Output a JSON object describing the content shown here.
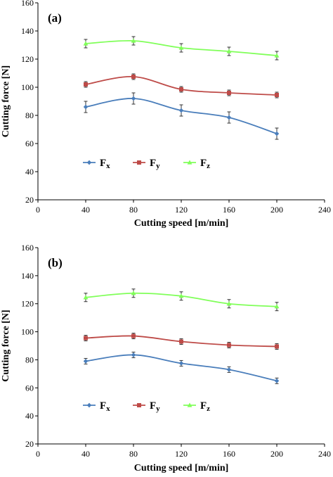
{
  "chart_data": [
    {
      "type": "line",
      "panel_label": "(a)",
      "xlabel": "Cutting speed [m/min]",
      "ylabel": "Cutting force [N]",
      "xlim": [
        0,
        240
      ],
      "ylim": [
        20,
        160
      ],
      "xticks": [
        0,
        40,
        80,
        120,
        160,
        200,
        240
      ],
      "yticks": [
        20,
        40,
        60,
        80,
        100,
        120,
        140,
        160
      ],
      "grid": false,
      "legend_position": "lower-left",
      "x": [
        40,
        80,
        120,
        160,
        200
      ],
      "series": [
        {
          "name": "F",
          "subscript": "x",
          "color": "#4a7ebb",
          "marker": "diamond",
          "values": [
            86,
            92,
            83.5,
            78.5,
            67
          ],
          "errors": [
            4,
            4,
            4,
            4,
            4
          ]
        },
        {
          "name": "F",
          "subscript": "y",
          "color": "#be4b48",
          "marker": "square",
          "values": [
            102,
            107.5,
            98.5,
            96,
            94.5
          ],
          "errors": [
            2,
            2,
            2,
            2,
            2
          ]
        },
        {
          "name": "F",
          "subscript": "z",
          "color": "#80ff59",
          "marker": "triangle",
          "values": [
            131,
            133,
            128,
            125.5,
            122.5
          ],
          "errors": [
            3,
            3,
            3,
            3,
            3
          ]
        }
      ]
    },
    {
      "type": "line",
      "panel_label": "(b)",
      "xlabel": "Cutting speed [m/min]",
      "ylabel": "Cutting force [N]",
      "xlim": [
        0,
        240
      ],
      "ylim": [
        20,
        160
      ],
      "xticks": [
        0,
        40,
        80,
        120,
        160,
        200,
        240
      ],
      "yticks": [
        20,
        40,
        60,
        80,
        100,
        120,
        140,
        160
      ],
      "grid": false,
      "legend_position": "lower-left",
      "x": [
        40,
        80,
        120,
        160,
        200
      ],
      "series": [
        {
          "name": "F",
          "subscript": "x",
          "color": "#4a7ebb",
          "marker": "diamond",
          "values": [
            79,
            83.5,
            77.5,
            73,
            65
          ],
          "errors": [
            2,
            2,
            2,
            2,
            2
          ]
        },
        {
          "name": "F",
          "subscript": "y",
          "color": "#be4b48",
          "marker": "square",
          "values": [
            95.5,
            97,
            93,
            90.5,
            89.5
          ],
          "errors": [
            2,
            2,
            2,
            2,
            2
          ]
        },
        {
          "name": "F",
          "subscript": "z",
          "color": "#80ff59",
          "marker": "triangle",
          "values": [
            124.5,
            127.5,
            125.5,
            120,
            118
          ],
          "errors": [
            3,
            3,
            3,
            3,
            3
          ]
        }
      ]
    }
  ]
}
